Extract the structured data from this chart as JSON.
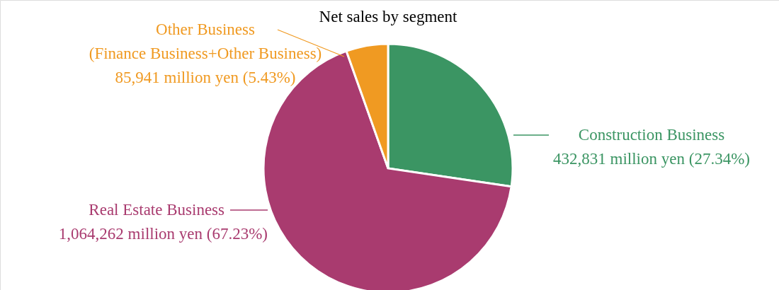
{
  "chart_data": {
    "type": "pie",
    "title": "Net sales by segment",
    "categories": [
      "Construction Business",
      "Real Estate Business",
      "Other Business\n(Finance Business+Other Business)"
    ],
    "values": [
      27.34,
      67.23,
      5.43
    ],
    "value_labels": [
      "432,831 million yen (27.34%)",
      "1,064,262 million yen (67.23%)",
      "85,941 million yen (5.43%)"
    ],
    "colors": [
      "#3b9563",
      "#a93b6f",
      "#f09a22"
    ]
  }
}
